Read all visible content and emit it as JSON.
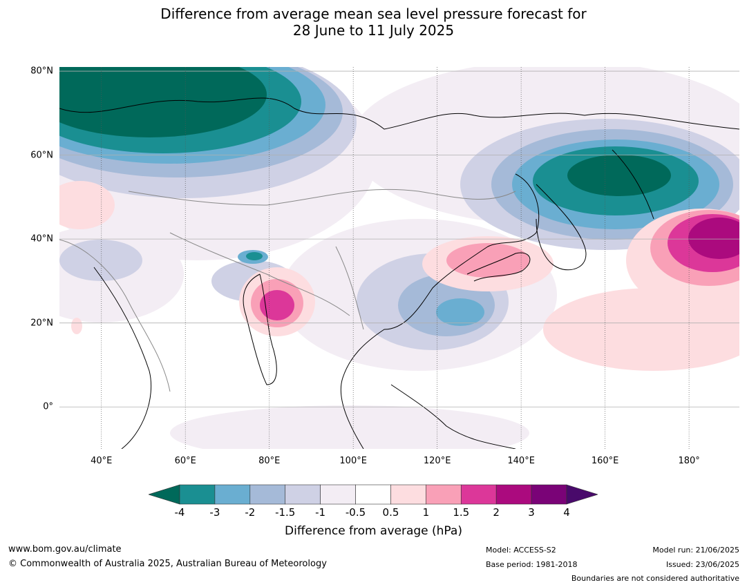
{
  "title_line1": "Difference from average mean sea level pressure forecast for",
  "title_line2": "28 June to 11 July 2025",
  "map": {
    "lat_labels": [
      "80°N",
      "60°N",
      "40°N",
      "20°N",
      "0°"
    ],
    "lat_values": [
      80,
      60,
      40,
      20,
      0
    ],
    "lon_labels": [
      "40°E",
      "60°E",
      "80°E",
      "100°E",
      "120°E",
      "140°E",
      "160°E",
      "180°"
    ],
    "lon_values": [
      40,
      60,
      80,
      100,
      120,
      140,
      160,
      180
    ],
    "lon_range": [
      30,
      192
    ],
    "lat_range": [
      -10,
      81
    ]
  },
  "colorbar": {
    "title": "Difference from average (hPa)",
    "tick_labels": [
      "-4",
      "-3",
      "-2",
      "-1.5",
      "-1",
      "-0.5",
      "0.5",
      "1",
      "1.5",
      "2",
      "3",
      "4"
    ],
    "colors": [
      "#1a8f92",
      "#6aaed1",
      "#a5bad8",
      "#cfd1e5",
      "#f3edf4",
      "#ffffff",
      "#fddde0",
      "#f9a0b7",
      "#dc3799",
      "#ab0a7e",
      "#7a0377"
    ],
    "under_color": "#00695a",
    "over_color": "#490a6b"
  },
  "footer": {
    "url": "www.bom.gov.au/climate",
    "copyright": "© Commonwealth of Australia 2025, Australian Bureau of Meteorology",
    "model": "Model: ACCESS-S2",
    "base_period": "Base period: 1981-2018",
    "model_run": "Model run: 21/06/2025",
    "issued": "Issued: 23/06/2025",
    "disclaimer": "Boundaries are not considered authoritative"
  }
}
